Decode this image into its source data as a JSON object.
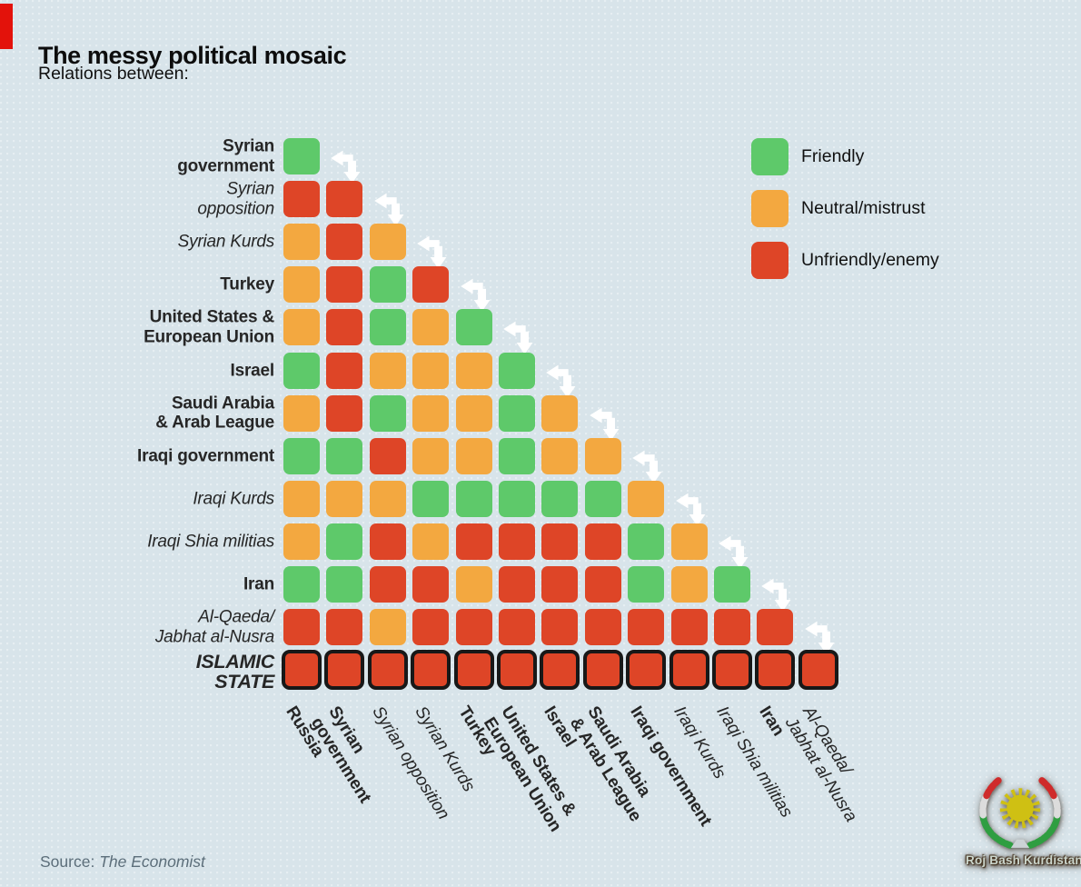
{
  "header": {
    "title": "The messy political mosaic",
    "subtitle": "Relations between:"
  },
  "chart_data": {
    "type": "heatmap",
    "title": "The messy political mosaic",
    "subtitle": "Relations between:",
    "value_key": {
      "F": "Friendly",
      "N": "Neutral/mistrust",
      "U": "Unfriendly/enemy"
    },
    "colors": {
      "F": "#5ec96a",
      "N": "#f3a840",
      "U": "#de4527"
    },
    "legend": [
      {
        "code": "F",
        "label": "Friendly"
      },
      {
        "code": "N",
        "label": "Neutral/mistrust"
      },
      {
        "code": "U",
        "label": "Unfriendly/enemy"
      }
    ],
    "columns": [
      {
        "label": "Russia",
        "lines": [
          "Russia"
        ],
        "style": "bold"
      },
      {
        "label": "Syrian government",
        "lines": [
          "Syrian",
          "government"
        ],
        "style": "bold"
      },
      {
        "label": "Syrian opposition",
        "lines": [
          "Syrian opposition"
        ],
        "style": "italic"
      },
      {
        "label": "Syrian Kurds",
        "lines": [
          "Syrian Kurds"
        ],
        "style": "italic"
      },
      {
        "label": "Turkey",
        "lines": [
          "Turkey"
        ],
        "style": "bold"
      },
      {
        "label": "United States & European Union",
        "lines": [
          "United States &",
          "European Union"
        ],
        "style": "bold"
      },
      {
        "label": "Israel",
        "lines": [
          "Israel"
        ],
        "style": "bold"
      },
      {
        "label": "Saudi Arabia & Arab League",
        "lines": [
          "Saudi Arabia",
          "& Arab League"
        ],
        "style": "bold"
      },
      {
        "label": "Iraqi government",
        "lines": [
          "Iraqi government"
        ],
        "style": "bold"
      },
      {
        "label": "Iraqi Kurds",
        "lines": [
          "Iraqi Kurds"
        ],
        "style": "italic"
      },
      {
        "label": "Iraqi Shia militias",
        "lines": [
          "Iraqi Shia militias"
        ],
        "style": "italic"
      },
      {
        "label": "Iran",
        "lines": [
          "Iran"
        ],
        "style": "bold"
      },
      {
        "label": "Al-Qaeda/Jabhat al-Nusra",
        "lines": [
          "Al-Qaeda/",
          "Jabhat al-Nusra"
        ],
        "style": "italic"
      }
    ],
    "rows": [
      {
        "label": "Syrian government",
        "lines": [
          "Syrian",
          "government"
        ],
        "style": "bold",
        "relations": [
          "F"
        ]
      },
      {
        "label": "Syrian opposition",
        "lines": [
          "Syrian",
          "opposition"
        ],
        "style": "italic",
        "relations": [
          "U",
          "U"
        ]
      },
      {
        "label": "Syrian Kurds",
        "lines": [
          "Syrian Kurds"
        ],
        "style": "italic",
        "relations": [
          "N",
          "U",
          "N"
        ]
      },
      {
        "label": "Turkey",
        "lines": [
          "Turkey"
        ],
        "style": "bold",
        "relations": [
          "N",
          "U",
          "F",
          "U"
        ]
      },
      {
        "label": "United States & European Union",
        "lines": [
          "United States &",
          "European Union"
        ],
        "style": "bold",
        "relations": [
          "N",
          "U",
          "F",
          "N",
          "F"
        ]
      },
      {
        "label": "Israel",
        "lines": [
          "Israel"
        ],
        "style": "bold",
        "relations": [
          "F",
          "U",
          "N",
          "N",
          "N",
          "F"
        ]
      },
      {
        "label": "Saudi Arabia & Arab League",
        "lines": [
          "Saudi Arabia",
          "& Arab League"
        ],
        "style": "bold",
        "relations": [
          "N",
          "U",
          "F",
          "N",
          "N",
          "F",
          "N"
        ]
      },
      {
        "label": "Iraqi government",
        "lines": [
          "Iraqi government"
        ],
        "style": "bold",
        "relations": [
          "F",
          "F",
          "U",
          "N",
          "N",
          "F",
          "N",
          "N"
        ]
      },
      {
        "label": "Iraqi Kurds",
        "lines": [
          "Iraqi Kurds"
        ],
        "style": "italic",
        "relations": [
          "N",
          "N",
          "N",
          "F",
          "F",
          "F",
          "F",
          "F",
          "N"
        ]
      },
      {
        "label": "Iraqi Shia militias",
        "lines": [
          "Iraqi Shia militias"
        ],
        "style": "italic",
        "relations": [
          "N",
          "F",
          "U",
          "N",
          "U",
          "U",
          "U",
          "U",
          "F",
          "N"
        ]
      },
      {
        "label": "Iran",
        "lines": [
          "Iran"
        ],
        "style": "bold",
        "relations": [
          "F",
          "F",
          "U",
          "U",
          "N",
          "U",
          "U",
          "U",
          "F",
          "N",
          "F"
        ]
      },
      {
        "label": "Al-Qaeda/Jabhat al-Nusra",
        "lines": [
          "Al-Qaeda/",
          "Jabhat al-Nusra"
        ],
        "style": "italic",
        "relations": [
          "U",
          "U",
          "N",
          "U",
          "U",
          "U",
          "U",
          "U",
          "U",
          "U",
          "U",
          "U"
        ]
      },
      {
        "label": "ISLAMIC STATE",
        "lines": [
          "ISLAMIC",
          "STATE"
        ],
        "style": "bold-italic",
        "outlined": true,
        "relations": [
          "U",
          "U",
          "U",
          "U",
          "U",
          "U",
          "U",
          "U",
          "U",
          "U",
          "U",
          "U",
          "U"
        ]
      }
    ],
    "legend_position": "top-right",
    "grid": false
  },
  "source": {
    "prefix": "Source:",
    "name": "The Economist"
  },
  "watermark": {
    "text": "Roj Bash Kurdistan"
  }
}
